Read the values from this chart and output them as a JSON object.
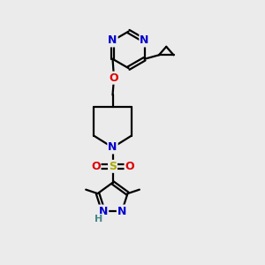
{
  "bg_color": "#ebebeb",
  "atom_colors": {
    "C": "#000000",
    "N": "#0000cc",
    "O": "#dd0000",
    "S": "#aaaa00",
    "H": "#448888"
  },
  "bond_color": "#000000",
  "bond_width": 1.6,
  "figsize": [
    3.0,
    3.0
  ],
  "dpi": 100
}
